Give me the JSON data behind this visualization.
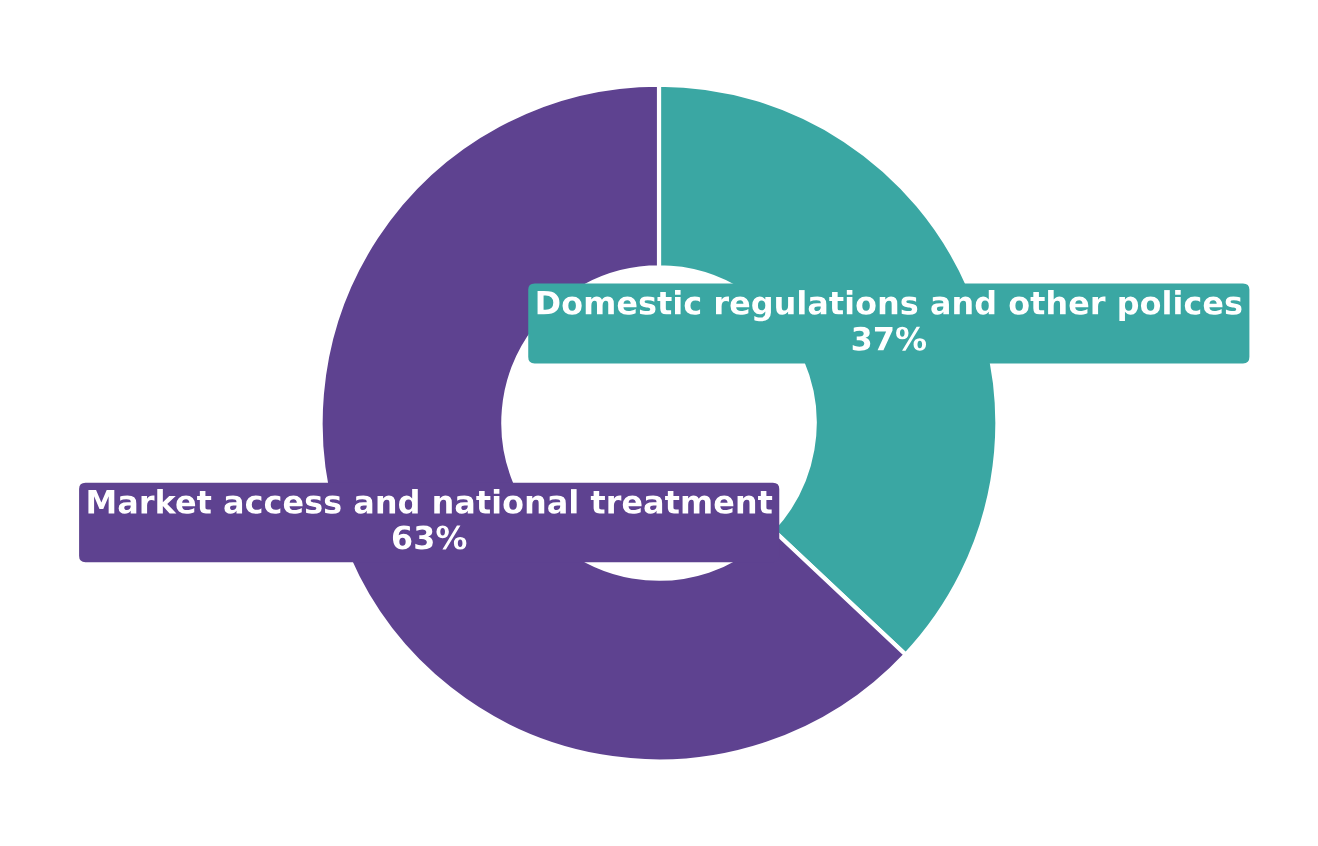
{
  "chart_data": {
    "type": "donut",
    "categories": [
      "Domestic regulations and other polices",
      "Market access and national treatment"
    ],
    "values": [
      37,
      63
    ],
    "value_labels": [
      "37%",
      "63%"
    ],
    "colors": [
      "#3aa7a3",
      "#5e4290"
    ]
  }
}
